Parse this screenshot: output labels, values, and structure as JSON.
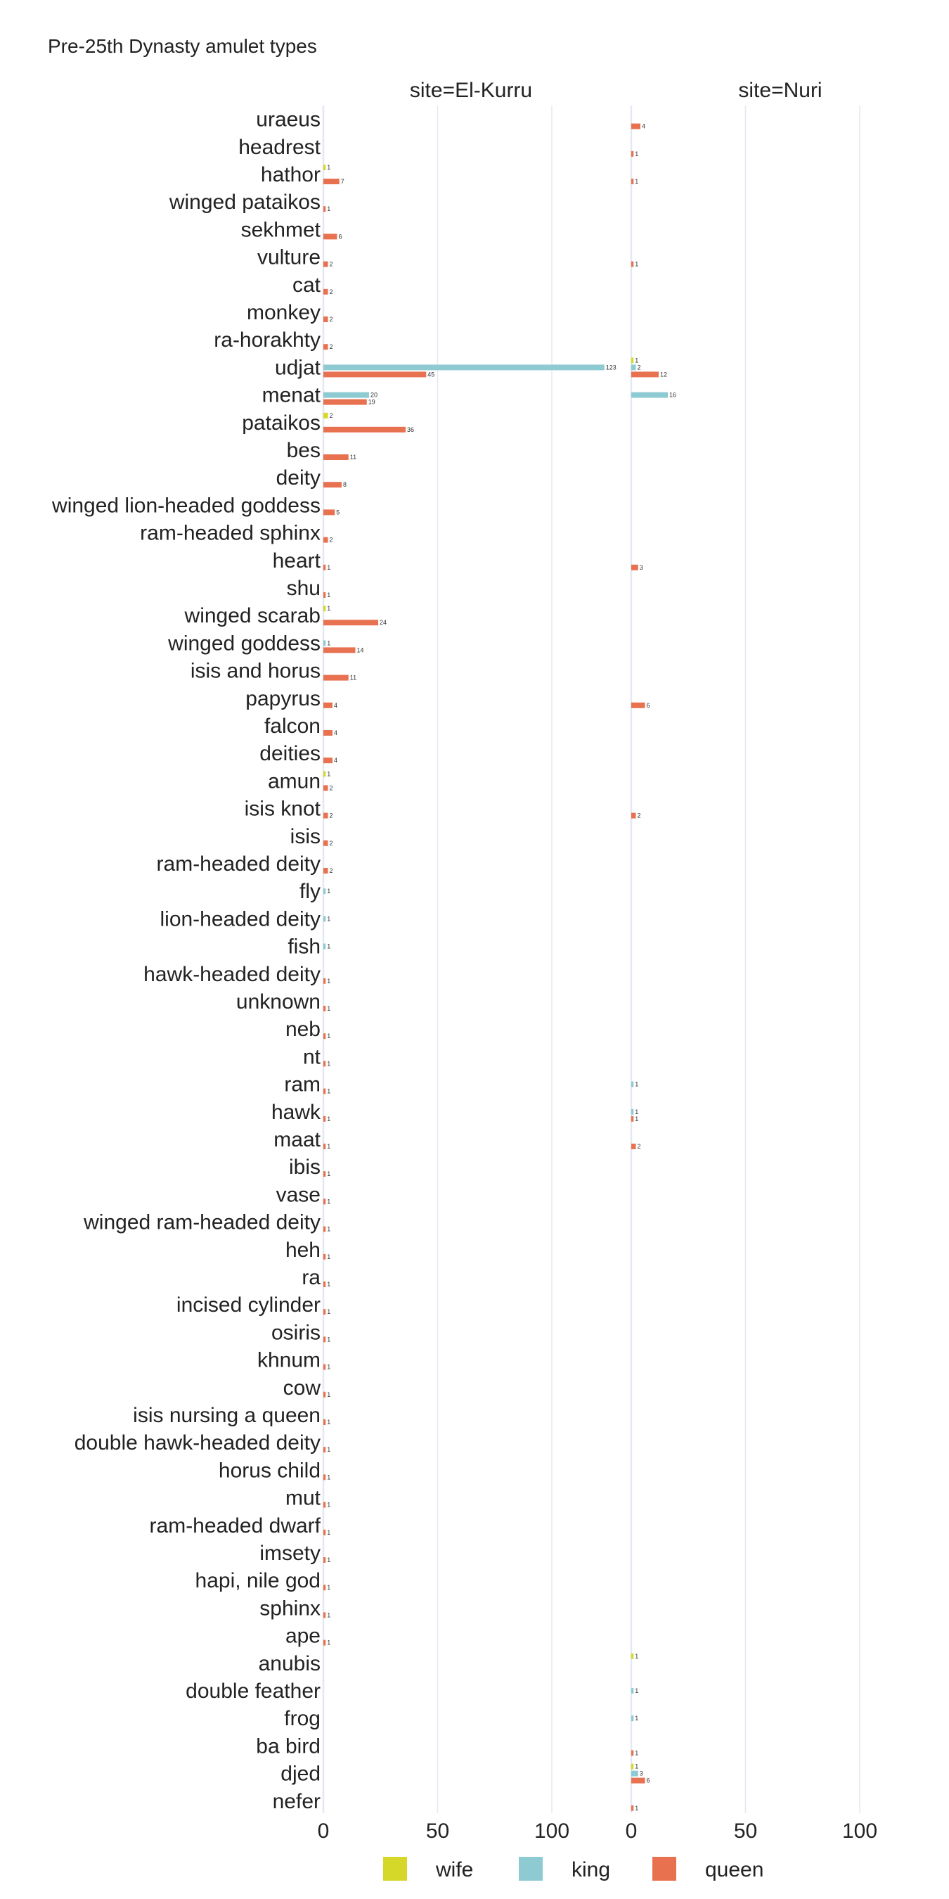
{
  "chart_data": {
    "type": "bar",
    "title": "Pre-25th Dynasty amulet types",
    "facets": [
      "site=El-Kurru",
      "site=Nuri"
    ],
    "xlim": [
      0,
      130
    ],
    "xticks": [
      0,
      50,
      100
    ],
    "tick_labels": [
      "0",
      "50",
      "100"
    ],
    "grid": true,
    "legend": "bottom",
    "categories": [
      "uraeus",
      "headrest",
      "hathor",
      "winged pataikos",
      "sekhmet",
      "vulture",
      "cat",
      "monkey",
      "ra-horakhty",
      "udjat",
      "menat",
      "pataikos",
      "bes",
      "deity",
      "winged lion-headed goddess",
      "ram-headed sphinx",
      "heart",
      "shu",
      "winged scarab",
      "winged goddess",
      "isis and horus",
      "papyrus",
      "falcon",
      "deities",
      "amun",
      "isis knot",
      "isis",
      "ram-headed deity",
      "fly",
      "lion-headed deity",
      "fish",
      "hawk-headed deity",
      "unknown",
      "neb",
      "nt",
      "ram",
      "hawk",
      "maat",
      "ibis",
      "vase",
      "winged ram-headed deity",
      "heh",
      "ra",
      "incised cylinder",
      "osiris",
      "khnum",
      "cow",
      "isis nursing a queen",
      "double hawk-headed deity",
      "horus child",
      "mut",
      "ram-headed dwarf",
      "imsety",
      "hapi, nile god",
      "sphinx",
      "ape",
      "anubis",
      "double feather",
      "frog",
      "ba bird",
      "djed",
      "nefer"
    ],
    "series": [
      {
        "name": "wife",
        "color": "#d5d729"
      },
      {
        "name": "king",
        "color": "#8ecad2"
      },
      {
        "name": "queen",
        "color": "#e8714f"
      }
    ],
    "bars": [
      {
        "facet": 1,
        "category": "uraeus",
        "series": "queen",
        "value": 4
      },
      {
        "facet": 1,
        "category": "headrest",
        "series": "queen",
        "value": 1
      },
      {
        "facet": 0,
        "category": "hathor",
        "series": "wife",
        "value": 1
      },
      {
        "facet": 0,
        "category": "hathor",
        "series": "queen",
        "value": 7
      },
      {
        "facet": 1,
        "category": "hathor",
        "series": "queen",
        "value": 1
      },
      {
        "facet": 0,
        "category": "winged pataikos",
        "series": "queen",
        "value": 1
      },
      {
        "facet": 0,
        "category": "sekhmet",
        "series": "queen",
        "value": 6
      },
      {
        "facet": 0,
        "category": "vulture",
        "series": "queen",
        "value": 2
      },
      {
        "facet": 1,
        "category": "vulture",
        "series": "queen",
        "value": 1
      },
      {
        "facet": 0,
        "category": "cat",
        "series": "queen",
        "value": 2
      },
      {
        "facet": 0,
        "category": "monkey",
        "series": "queen",
        "value": 2
      },
      {
        "facet": 0,
        "category": "ra-horakhty",
        "series": "queen",
        "value": 2
      },
      {
        "facet": 0,
        "category": "udjat",
        "series": "king",
        "value": 123
      },
      {
        "facet": 0,
        "category": "udjat",
        "series": "queen",
        "value": 45
      },
      {
        "facet": 1,
        "category": "udjat",
        "series": "wife",
        "value": 1
      },
      {
        "facet": 1,
        "category": "udjat",
        "series": "king",
        "value": 2
      },
      {
        "facet": 1,
        "category": "udjat",
        "series": "queen",
        "value": 12
      },
      {
        "facet": 0,
        "category": "menat",
        "series": "king",
        "value": 20
      },
      {
        "facet": 0,
        "category": "menat",
        "series": "queen",
        "value": 19
      },
      {
        "facet": 1,
        "category": "menat",
        "series": "king",
        "value": 16
      },
      {
        "facet": 0,
        "category": "pataikos",
        "series": "wife",
        "value": 2
      },
      {
        "facet": 0,
        "category": "pataikos",
        "series": "queen",
        "value": 36
      },
      {
        "facet": 0,
        "category": "bes",
        "series": "queen",
        "value": 11
      },
      {
        "facet": 0,
        "category": "deity",
        "series": "queen",
        "value": 8
      },
      {
        "facet": 0,
        "category": "winged lion-headed goddess",
        "series": "queen",
        "value": 5
      },
      {
        "facet": 0,
        "category": "ram-headed sphinx",
        "series": "queen",
        "value": 2
      },
      {
        "facet": 0,
        "category": "heart",
        "series": "queen",
        "value": 1
      },
      {
        "facet": 1,
        "category": "heart",
        "series": "queen",
        "value": 3
      },
      {
        "facet": 0,
        "category": "shu",
        "series": "queen",
        "value": 1
      },
      {
        "facet": 0,
        "category": "winged scarab",
        "series": "wife",
        "value": 1
      },
      {
        "facet": 0,
        "category": "winged scarab",
        "series": "queen",
        "value": 24
      },
      {
        "facet": 0,
        "category": "winged goddess",
        "series": "king",
        "value": 1
      },
      {
        "facet": 0,
        "category": "winged goddess",
        "series": "queen",
        "value": 14
      },
      {
        "facet": 0,
        "category": "isis and horus",
        "series": "queen",
        "value": 11
      },
      {
        "facet": 0,
        "category": "papyrus",
        "series": "queen",
        "value": 4
      },
      {
        "facet": 1,
        "category": "papyrus",
        "series": "queen",
        "value": 6
      },
      {
        "facet": 0,
        "category": "falcon",
        "series": "queen",
        "value": 4
      },
      {
        "facet": 0,
        "category": "deities",
        "series": "queen",
        "value": 4
      },
      {
        "facet": 0,
        "category": "amun",
        "series": "wife",
        "value": 1
      },
      {
        "facet": 0,
        "category": "amun",
        "series": "queen",
        "value": 2
      },
      {
        "facet": 0,
        "category": "isis knot",
        "series": "queen",
        "value": 2
      },
      {
        "facet": 1,
        "category": "isis knot",
        "series": "queen",
        "value": 2
      },
      {
        "facet": 0,
        "category": "isis",
        "series": "queen",
        "value": 2
      },
      {
        "facet": 0,
        "category": "ram-headed deity",
        "series": "queen",
        "value": 2
      },
      {
        "facet": 0,
        "category": "fly",
        "series": "king",
        "value": 1
      },
      {
        "facet": 0,
        "category": "lion-headed deity",
        "series": "king",
        "value": 1
      },
      {
        "facet": 0,
        "category": "fish",
        "series": "king",
        "value": 1
      },
      {
        "facet": 0,
        "category": "hawk-headed deity",
        "series": "queen",
        "value": 1
      },
      {
        "facet": 0,
        "category": "unknown",
        "series": "queen",
        "value": 1
      },
      {
        "facet": 0,
        "category": "neb",
        "series": "queen",
        "value": 1
      },
      {
        "facet": 0,
        "category": "nt",
        "series": "queen",
        "value": 1
      },
      {
        "facet": 0,
        "category": "ram",
        "series": "queen",
        "value": 1
      },
      {
        "facet": 1,
        "category": "ram",
        "series": "king",
        "value": 1
      },
      {
        "facet": 0,
        "category": "hawk",
        "series": "queen",
        "value": 1
      },
      {
        "facet": 1,
        "category": "hawk",
        "series": "king",
        "value": 1
      },
      {
        "facet": 1,
        "category": "hawk",
        "series": "queen",
        "value": 1
      },
      {
        "facet": 0,
        "category": "maat",
        "series": "queen",
        "value": 1
      },
      {
        "facet": 1,
        "category": "maat",
        "series": "queen",
        "value": 2
      },
      {
        "facet": 0,
        "category": "ibis",
        "series": "queen",
        "value": 1
      },
      {
        "facet": 0,
        "category": "vase",
        "series": "queen",
        "value": 1
      },
      {
        "facet": 0,
        "category": "winged ram-headed deity",
        "series": "queen",
        "value": 1
      },
      {
        "facet": 0,
        "category": "heh",
        "series": "queen",
        "value": 1
      },
      {
        "facet": 0,
        "category": "ra",
        "series": "queen",
        "value": 1
      },
      {
        "facet": 0,
        "category": "incised cylinder",
        "series": "queen",
        "value": 1
      },
      {
        "facet": 0,
        "category": "osiris",
        "series": "queen",
        "value": 1
      },
      {
        "facet": 0,
        "category": "khnum",
        "series": "queen",
        "value": 1
      },
      {
        "facet": 0,
        "category": "cow",
        "series": "queen",
        "value": 1
      },
      {
        "facet": 0,
        "category": "isis nursing a queen",
        "series": "queen",
        "value": 1
      },
      {
        "facet": 0,
        "category": "double hawk-headed deity",
        "series": "queen",
        "value": 1
      },
      {
        "facet": 0,
        "category": "horus child",
        "series": "queen",
        "value": 1
      },
      {
        "facet": 0,
        "category": "mut",
        "series": "queen",
        "value": 1
      },
      {
        "facet": 0,
        "category": "ram-headed dwarf",
        "series": "queen",
        "value": 1
      },
      {
        "facet": 0,
        "category": "imsety",
        "series": "queen",
        "value": 1
      },
      {
        "facet": 0,
        "category": "hapi, nile god",
        "series": "queen",
        "value": 1
      },
      {
        "facet": 0,
        "category": "sphinx",
        "series": "queen",
        "value": 1
      },
      {
        "facet": 0,
        "category": "ape",
        "series": "queen",
        "value": 1
      },
      {
        "facet": 1,
        "category": "anubis",
        "series": "wife",
        "value": 1
      },
      {
        "facet": 1,
        "category": "double feather",
        "series": "king",
        "value": 1
      },
      {
        "facet": 1,
        "category": "frog",
        "series": "king",
        "value": 1
      },
      {
        "facet": 1,
        "category": "ba bird",
        "series": "queen",
        "value": 1
      },
      {
        "facet": 1,
        "category": "djed",
        "series": "wife",
        "value": 1
      },
      {
        "facet": 1,
        "category": "djed",
        "series": "king",
        "value": 3
      },
      {
        "facet": 1,
        "category": "djed",
        "series": "queen",
        "value": 6
      },
      {
        "facet": 1,
        "category": "nefer",
        "series": "queen",
        "value": 1
      }
    ]
  }
}
